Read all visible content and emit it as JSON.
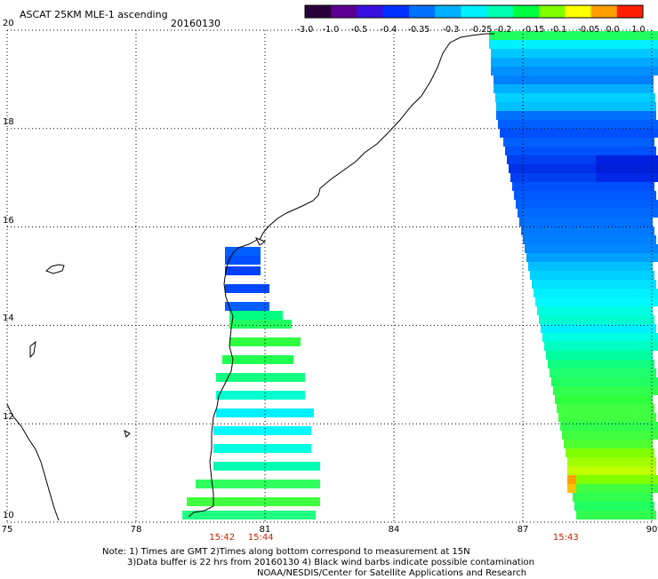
{
  "header": {
    "title": "ASCAT 25KM MLE-1 ascending",
    "date": "20160130"
  },
  "colorbar": {
    "tick_labels": [
      "-3.0",
      "-1.0",
      "-0.5",
      "-0.4",
      "-0.35",
      "-0.3",
      "-0.25",
      "-0.2",
      "-0.15",
      "-0.1",
      "-0.05",
      "0.0",
      "1.0"
    ],
    "colors": [
      "#2a003a",
      "#5a0090",
      "#3a10e0",
      "#0030ff",
      "#0070ff",
      "#00b0ff",
      "#00f0ff",
      "#00ffb0",
      "#00ff40",
      "#80ff00",
      "#ffff00",
      "#ffa000",
      "#ff2000"
    ]
  },
  "map": {
    "lat_labels": [
      "20",
      "18",
      "16",
      "14",
      "12",
      "10"
    ],
    "lon_labels": [
      "75",
      "78",
      "81",
      "84",
      "87",
      "90"
    ],
    "pass_times": [
      {
        "label": "15:42",
        "lon": 80.0
      },
      {
        "label": "15:44",
        "lon": 80.9
      },
      {
        "label": "15:43",
        "lon": 88.0
      }
    ],
    "gridlines": true,
    "lat_range": [
      10,
      20
    ],
    "lon_range": [
      75,
      90
    ]
  },
  "notes": {
    "line1": "Note: 1) Times are GMT 2)Times along bottom correspond to measurement at 15N",
    "line2": "3)Data buffer is 22 hrs from 20160130 4) Black wind barbs indicate possible contamination",
    "line3": "NOAA/NESDIS/Center for Satellite Applications and Research"
  }
}
